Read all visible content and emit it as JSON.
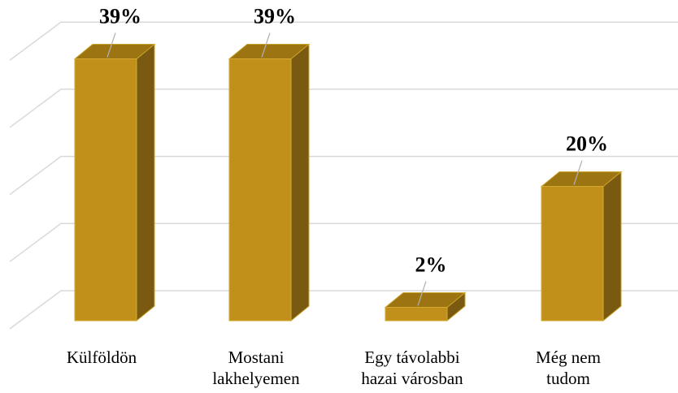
{
  "chart_data": {
    "type": "bar3d",
    "categories": [
      "Külföldön",
      "Mostani\nlakhelyemen",
      "Egy távolabbi\nhazai városban",
      "Még nem\ntudom"
    ],
    "values": [
      39,
      39,
      2,
      20
    ],
    "value_labels": [
      "39%",
      "39%",
      "2%",
      "20%"
    ],
    "color": "#c0901a",
    "ylim": [
      0,
      40
    ],
    "yticks": [
      0,
      10,
      20,
      30,
      40
    ],
    "grid": true
  }
}
